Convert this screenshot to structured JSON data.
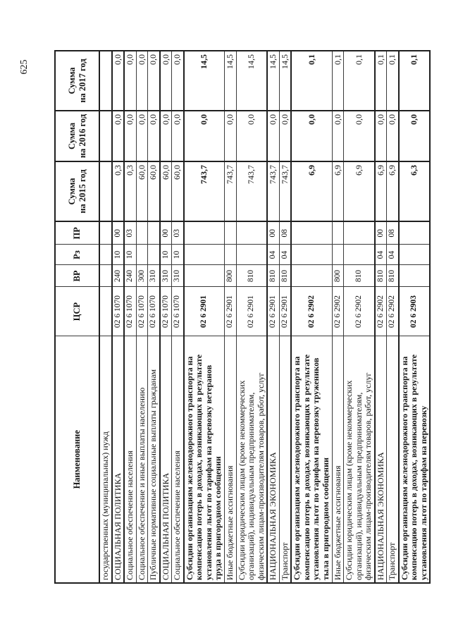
{
  "page": {
    "number": "625"
  },
  "table": {
    "headers": {
      "name": "Наименование",
      "csr": "ЦСР",
      "vr": "ВР",
      "rz": "Рз",
      "pr": "ПР",
      "sum2015": {
        "top": "Сумма",
        "bottom": "на 2015 год"
      },
      "sum2016": {
        "top": "Сумма",
        "bottom": "на 2016 год"
      },
      "sum2017": {
        "top": "Сумма",
        "bottom": "на 2017 год"
      }
    },
    "rows": [
      {
        "name": "государственных (муниципальных) нужд",
        "csr": "",
        "vr": "",
        "rz": "",
        "pr": "",
        "y2015": "",
        "y2016": "",
        "y2017": "",
        "bold": false,
        "thick_top": false
      },
      {
        "name": "СОЦИАЛЬНАЯ ПОЛИТИКА",
        "csr": "02 6 1070",
        "vr": "240",
        "rz": "10",
        "pr": "00",
        "y2015": "0,3",
        "y2016": "0,0",
        "y2017": "0,0",
        "bold": false,
        "thick_top": true
      },
      {
        "name": "Социальное обеспечение населения",
        "csr": "02 6 1070",
        "vr": "240",
        "rz": "10",
        "pr": "03",
        "y2015": "0,3",
        "y2016": "0,0",
        "y2017": "0,0",
        "bold": false,
        "thick_top": true
      },
      {
        "name": "Социальное обеспечение и иные выплаты населению",
        "csr": "02 6 1070",
        "vr": "300",
        "rz": "",
        "pr": "",
        "y2015": "60,0",
        "y2016": "0,0",
        "y2017": "0,0",
        "bold": false,
        "thick_top": false
      },
      {
        "name": "Публичные нормативные социальные выплаты гражданам",
        "csr": "02 6 1070",
        "vr": "310",
        "rz": "",
        "pr": "",
        "y2015": "60,0",
        "y2016": "0,0",
        "y2017": "0,0",
        "bold": false,
        "thick_top": false
      },
      {
        "name": "СОЦИАЛЬНАЯ ПОЛИТИКА",
        "csr": "02 6 1070",
        "vr": "310",
        "rz": "10",
        "pr": "00",
        "y2015": "60,0",
        "y2016": "0,0",
        "y2017": "0,0",
        "bold": false,
        "thick_top": true
      },
      {
        "name": "Социальное обеспечение населения",
        "csr": "02 6 1070",
        "vr": "310",
        "rz": "10",
        "pr": "03",
        "y2015": "60,0",
        "y2016": "0,0",
        "y2017": "0,0",
        "bold": false,
        "thick_top": false
      },
      {
        "name": "Субсидии организациям железнодорожного транспорта на компенсацию потерь в доходах, возникающих в результате установления льгот по тарифам на перевозку ветеранов труда в пригородном сообщении",
        "csr": "02 6 2901",
        "vr": "",
        "rz": "",
        "pr": "",
        "y2015": "743,7",
        "y2016": "0,0",
        "y2017": "14,5",
        "bold": true,
        "thick_top": true
      },
      {
        "name": "Иные бюджетные ассигнования",
        "csr": "02 6 2901",
        "vr": "800",
        "rz": "",
        "pr": "",
        "y2015": "743,7",
        "y2016": "0,0",
        "y2017": "14,5",
        "bold": false,
        "thick_top": false
      },
      {
        "name": "Субсидии юридическим лицам (кроме некоммерческих организаций), индивидуальным предпринимателям, физическим лицам-производителям товаров, работ, услуг",
        "csr": "02 6 2901",
        "vr": "810",
        "rz": "",
        "pr": "",
        "y2015": "743,7",
        "y2016": "0,0",
        "y2017": "14,5",
        "bold": false,
        "thick_top": false
      },
      {
        "name": "НАЦИОНАЛЬНАЯ ЭКОНОМИКА",
        "csr": "02 6 2901",
        "vr": "810",
        "rz": "04",
        "pr": "00",
        "y2015": "743,7",
        "y2016": "0,0",
        "y2017": "14,5",
        "bold": false,
        "thick_top": true
      },
      {
        "name": "Транспорт",
        "csr": "02 6 2901",
        "vr": "810",
        "rz": "04",
        "pr": "08",
        "y2015": "743,7",
        "y2016": "0,0",
        "y2017": "14,5",
        "bold": false,
        "thick_top": false
      },
      {
        "name": "Субсидии организациям железнодорожного транспорта на компенсацию потерь в доходах, возникающих в результате установления льгот по тарифам на перевозку тружеников тыла в пригородном сообщении",
        "csr": "02 6 2902",
        "vr": "",
        "rz": "",
        "pr": "",
        "y2015": "6,9",
        "y2016": "0,0",
        "y2017": "0,1",
        "bold": true,
        "thick_top": true
      },
      {
        "name": "Иные бюджетные ассигнования",
        "csr": "02 6 2902",
        "vr": "800",
        "rz": "",
        "pr": "",
        "y2015": "6,9",
        "y2016": "0,0",
        "y2017": "0,1",
        "bold": false,
        "thick_top": false
      },
      {
        "name": "Субсидии юридическим лицам (кроме некоммерческих организаций), индивидуальным предпринимателям, физическим лицам-производителям товаров, работ, услуг",
        "csr": "02 6 2902",
        "vr": "810",
        "rz": "",
        "pr": "",
        "y2015": "6,9",
        "y2016": "0,0",
        "y2017": "0,1",
        "bold": false,
        "thick_top": false
      },
      {
        "name": "НАЦИОНАЛЬНАЯ ЭКОНОМИКА",
        "csr": "02 6 2902",
        "vr": "810",
        "rz": "04",
        "pr": "00",
        "y2015": "6,9",
        "y2016": "0,0",
        "y2017": "0,1",
        "bold": false,
        "thick_top": true
      },
      {
        "name": "Транспорт",
        "csr": "02 6 2902",
        "vr": "810",
        "rz": "04",
        "pr": "08",
        "y2015": "6,9",
        "y2016": "0,0",
        "y2017": "0,1",
        "bold": false,
        "thick_top": false
      },
      {
        "name": "Субсидии организациям железнодорожного транспорта на компенсацию потерь в доходах, возникающих в результате установления льгот по тарифам на перевозку",
        "csr": "02 6 2903",
        "vr": "",
        "rz": "",
        "pr": "",
        "y2015": "6,3",
        "y2016": "0,0",
        "y2017": "0,1",
        "bold": true,
        "thick_top": true
      }
    ]
  }
}
